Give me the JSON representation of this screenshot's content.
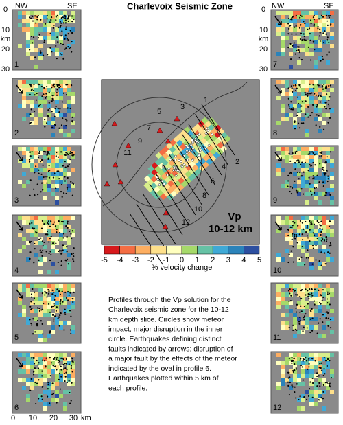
{
  "title": "Charlevoix Seismic Zone",
  "left_axis": {
    "corners": [
      "NW",
      "SE"
    ],
    "depth_ticks": [
      "0",
      "10",
      "20",
      "30"
    ],
    "depth_unit": "km",
    "distance_ticks": [
      "0",
      "10",
      "20",
      "30"
    ],
    "distance_unit": "km"
  },
  "right_axis": {
    "corners": [
      "NW",
      "SE"
    ],
    "depth_ticks": [
      "0",
      "10",
      "20",
      "30"
    ],
    "depth_unit": "km"
  },
  "left_panels": [
    "1",
    "2",
    "3",
    "4",
    "5",
    "6"
  ],
  "right_panels": [
    "7",
    "8",
    "9",
    "10",
    "11",
    "12"
  ],
  "map": {
    "profile_labels_nw": [
      "1",
      "3",
      "5",
      "7",
      "9",
      "11"
    ],
    "profile_labels_se": [
      "2",
      "4",
      "6",
      "8",
      "10",
      "12"
    ],
    "label": "Vp",
    "depth": "10-12 km"
  },
  "colorbar": {
    "ticks": [
      "-5",
      "-4",
      "-3",
      "-2",
      "-1",
      "0",
      "1",
      "2",
      "3",
      "4",
      "5"
    ],
    "label": "% velocity change"
  },
  "caption": [
    "Profiles through the Vp solution for the",
    "Charlevoix seismic zone for the 10-12",
    "km depth slice. Circles show meteor",
    "impact; major disruption in the inner",
    "circle. Earthquakes defining distinct",
    "faults indicated by arrows; disruption of",
    "a major fault by the effects of the meteor",
    "indicated by the oval in profile 6.",
    "Earthquakes plotted within 5 km of",
    "each profile."
  ]
}
